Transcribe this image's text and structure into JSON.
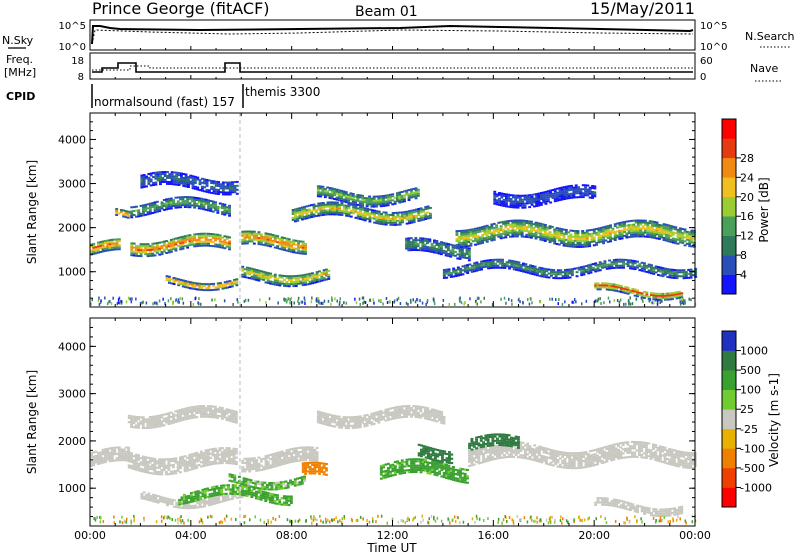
{
  "header": {
    "station": "Prince George (fitACF)",
    "beam": "Beam 01",
    "date": "15/May/2011"
  },
  "top_panels": {
    "noise": {
      "left_label": "N.Sky",
      "right_label": "N.Search",
      "left_ticks": [
        "10^5",
        "10^0"
      ],
      "right_ticks": [
        "10^5",
        "10^0"
      ]
    },
    "freq": {
      "left_label_1": "Freq.",
      "left_label_2": "[MHz]",
      "left_ticks": [
        "18",
        "8"
      ],
      "right_label": "Nave",
      "right_ticks": [
        "60",
        "0"
      ]
    },
    "cpid": {
      "label": "CPID",
      "modes": [
        "normalsound (fast) 157",
        "themis 3300"
      ]
    }
  },
  "colors": {
    "power_scale": [
      "#1414ff",
      "#2a4fb8",
      "#2f7a5a",
      "#4aa05a",
      "#9acd32",
      "#f0c020",
      "#f08a10",
      "#e83a10",
      "#ff0000"
    ],
    "velocity_scale": [
      "#2030c0",
      "#2f7a40",
      "#3aa030",
      "#70cc30",
      "#c8c8c0",
      "#e8b000",
      "#f08000",
      "#f04000",
      "#ff0000"
    ]
  },
  "chart_data": [
    {
      "type": "heatmap",
      "title": "Power",
      "xlabel": "Time UT",
      "ylabel": "Slant Range [km]",
      "x_ticks": [
        "00:00",
        "04:00",
        "08:00",
        "12:00",
        "16:00",
        "20:00",
        "00:00"
      ],
      "y_ticks": [
        1000,
        2000,
        3000,
        4000
      ],
      "ylim": [
        200,
        4600
      ],
      "colorbar_label": "Power [dB]",
      "colorbar_ticks": [
        4,
        8,
        12,
        16,
        20,
        24,
        28
      ],
      "echo_bands": [
        {
          "t0": 0.0,
          "t1": 1.2,
          "range": 1500,
          "width": 260,
          "peak_db": 26
        },
        {
          "t0": 1.0,
          "t1": 1.6,
          "range": 2250,
          "width": 150,
          "peak_db": 28
        },
        {
          "t0": 1.6,
          "t1": 5.5,
          "range": 1600,
          "width": 300,
          "peak_db": 26
        },
        {
          "t0": 1.6,
          "t1": 5.5,
          "range": 2450,
          "width": 250,
          "peak_db": 14
        },
        {
          "t0": 2.0,
          "t1": 5.8,
          "range": 3000,
          "width": 300,
          "peak_db": 8
        },
        {
          "t0": 3.0,
          "t1": 5.8,
          "range": 750,
          "width": 140,
          "peak_db": 26
        },
        {
          "t0": 6.0,
          "t1": 8.5,
          "range": 1650,
          "width": 300,
          "peak_db": 26
        },
        {
          "t0": 6.0,
          "t1": 9.5,
          "range": 900,
          "width": 260,
          "peak_db": 20
        },
        {
          "t0": 8.0,
          "t1": 13.5,
          "range": 2300,
          "width": 280,
          "peak_db": 20
        },
        {
          "t0": 9.0,
          "t1": 13.0,
          "range": 2700,
          "width": 250,
          "peak_db": 16
        },
        {
          "t0": 12.5,
          "t1": 15.0,
          "range": 1500,
          "width": 300,
          "peak_db": 12
        },
        {
          "t0": 14.5,
          "t1": 24.0,
          "range": 1850,
          "width": 380,
          "peak_db": 20
        },
        {
          "t0": 14.0,
          "t1": 24.0,
          "range": 1050,
          "width": 200,
          "peak_db": 12
        },
        {
          "t0": 20.0,
          "t1": 23.5,
          "range": 550,
          "width": 180,
          "peak_db": 26
        },
        {
          "t0": 16.0,
          "t1": 20.0,
          "range": 2700,
          "width": 300,
          "peak_db": 6
        }
      ]
    },
    {
      "type": "heatmap",
      "title": "Velocity",
      "xlabel": "Time UT",
      "ylabel": "Slant Range [km]",
      "x_ticks": [
        "00:00",
        "04:00",
        "08:00",
        "12:00",
        "16:00",
        "20:00",
        "00:00"
      ],
      "y_ticks": [
        1000,
        2000,
        3000,
        4000
      ],
      "ylim": [
        200,
        4600
      ],
      "colorbar_label": "Velocity [m s-1]",
      "colorbar_ticks": [
        1000,
        500,
        100,
        25,
        -25,
        -100,
        -500,
        -1000
      ],
      "echo_bands": [
        {
          "t0": 0.0,
          "t1": 1.5,
          "range": 1600,
          "width": 300,
          "velocity": 0
        },
        {
          "t0": 1.5,
          "t1": 5.8,
          "range": 1550,
          "width": 320,
          "velocity": 0
        },
        {
          "t0": 1.5,
          "t1": 5.8,
          "range": 2500,
          "width": 260,
          "velocity": 0
        },
        {
          "t0": 6.0,
          "t1": 9.0,
          "range": 1600,
          "width": 300,
          "velocity": 0
        },
        {
          "t0": 9.0,
          "t1": 14.0,
          "range": 2500,
          "width": 260,
          "velocity": 0
        },
        {
          "t0": 15.0,
          "t1": 24.0,
          "range": 1700,
          "width": 360,
          "velocity": 0
        },
        {
          "t0": 2.0,
          "t1": 6.0,
          "range": 750,
          "width": 150,
          "velocity": 0
        },
        {
          "t0": 3.5,
          "t1": 8.0,
          "range": 850,
          "width": 220,
          "velocity": 150
        },
        {
          "t0": 5.5,
          "t1": 8.5,
          "range": 1150,
          "width": 160,
          "velocity": 120
        },
        {
          "t0": 8.4,
          "t1": 9.4,
          "range": 1300,
          "width": 260,
          "velocity": -300
        },
        {
          "t0": 11.5,
          "t1": 15.0,
          "range": 1350,
          "width": 300,
          "velocity": 200
        },
        {
          "t0": 13.0,
          "t1": 14.3,
          "range": 1750,
          "width": 250,
          "velocity": 800
        },
        {
          "t0": 15.0,
          "t1": 17.0,
          "range": 1900,
          "width": 260,
          "velocity": 700
        },
        {
          "t0": 20.0,
          "t1": 23.5,
          "range": 600,
          "width": 180,
          "velocity": 0
        }
      ]
    }
  ]
}
